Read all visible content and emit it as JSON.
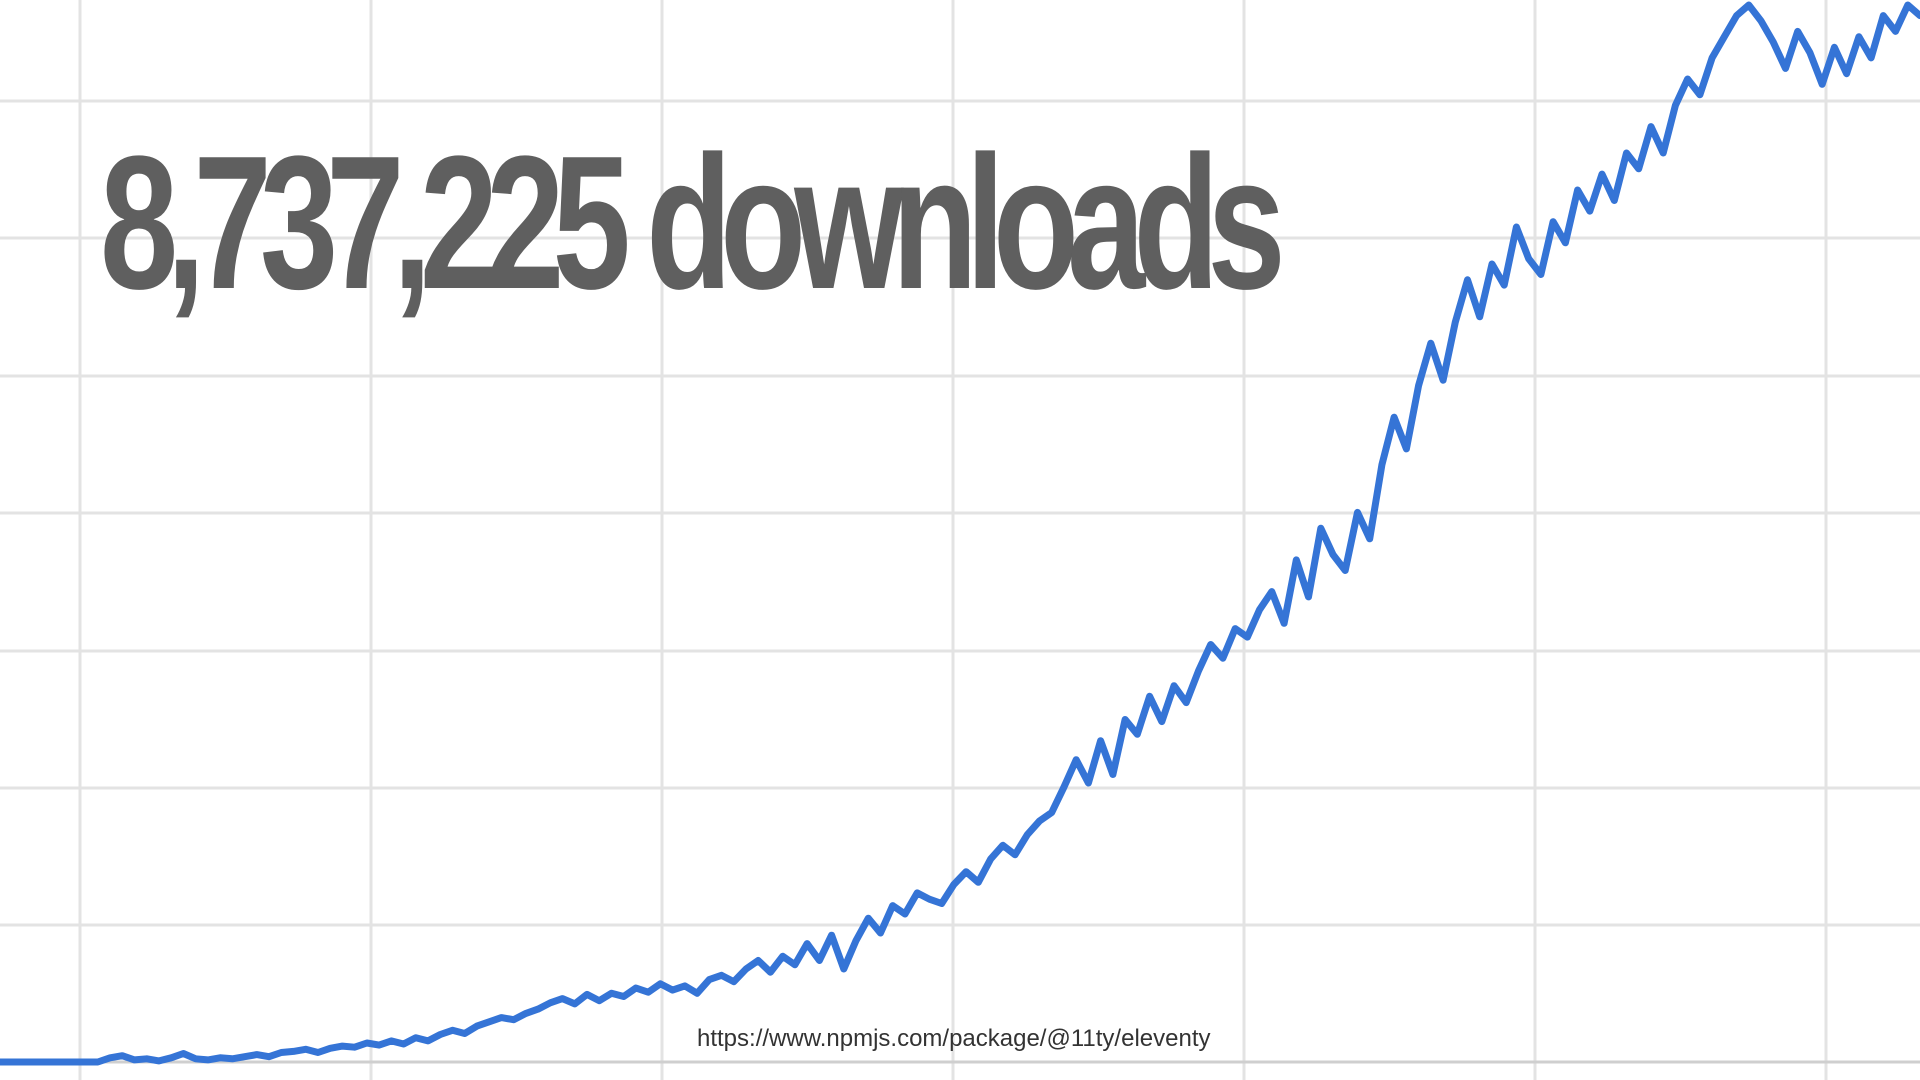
{
  "headline": "8,737,225 downloads",
  "source_url": "https://www.npmjs.com/package/@11ty/eleventy",
  "colors": {
    "line": "#3574d6",
    "grid": "#e3e3e3",
    "headline": "#5f5f5f",
    "background": "#ffffff"
  },
  "chart_data": {
    "type": "line",
    "title": "",
    "xlabel": "",
    "ylabel": "",
    "grid": true,
    "legend": "none",
    "x_tick_labels": [],
    "y_tick_labels": [],
    "ylim": [
      0,
      100
    ],
    "series": [
      {
        "values": [
          0,
          0,
          0,
          0,
          0,
          0,
          0,
          0,
          0,
          0.4,
          0.6,
          0.2,
          0.3,
          0.1,
          0.4,
          0.8,
          0.3,
          0.2,
          0.4,
          0.3,
          0.5,
          0.7,
          0.5,
          0.9,
          1.0,
          1.2,
          0.9,
          1.3,
          1.5,
          1.4,
          1.8,
          1.6,
          2.0,
          1.7,
          2.3,
          2.0,
          2.6,
          3.0,
          2.7,
          3.4,
          3.8,
          4.2,
          4.0,
          4.6,
          5.0,
          5.6,
          6.0,
          5.5,
          6.4,
          5.8,
          6.5,
          6.2,
          7.0,
          6.6,
          7.4,
          6.8,
          7.2,
          6.5,
          7.8,
          8.2,
          7.6,
          8.8,
          9.6,
          8.5,
          10.0,
          9.2,
          11.2,
          9.6,
          12.0,
          8.8,
          11.5,
          13.6,
          12.2,
          14.8,
          14.0,
          16.0,
          15.4,
          15.0,
          16.8,
          18.0,
          17.0,
          19.2,
          20.5,
          19.6,
          21.5,
          22.8,
          23.6,
          26.0,
          28.6,
          26.4,
          30.4,
          27.2,
          32.4,
          31.0,
          34.6,
          32.2,
          35.6,
          34.0,
          37.0,
          39.5,
          38.2,
          41.0,
          40.2,
          42.8,
          44.5,
          41.5,
          47.5,
          44.0,
          50.5,
          48.0,
          46.5,
          52.0,
          49.5,
          56.5,
          61.0,
          58.0,
          64.0,
          68.0,
          64.5,
          70.0,
          74.0,
          70.5,
          75.5,
          73.5,
          79.0,
          76.0,
          74.5,
          79.5,
          77.5,
          82.5,
          80.5,
          84.0,
          81.5,
          86.0,
          84.5,
          88.5,
          86.0,
          90.5,
          93.0,
          91.5,
          95.0,
          97.0,
          99.0,
          100.0,
          98.5,
          96.5,
          94.0,
          97.5,
          95.5,
          92.5,
          96.0,
          93.5,
          97.0,
          95.0,
          99.0,
          97.5,
          100.0,
          99.0
        ]
      }
    ]
  }
}
